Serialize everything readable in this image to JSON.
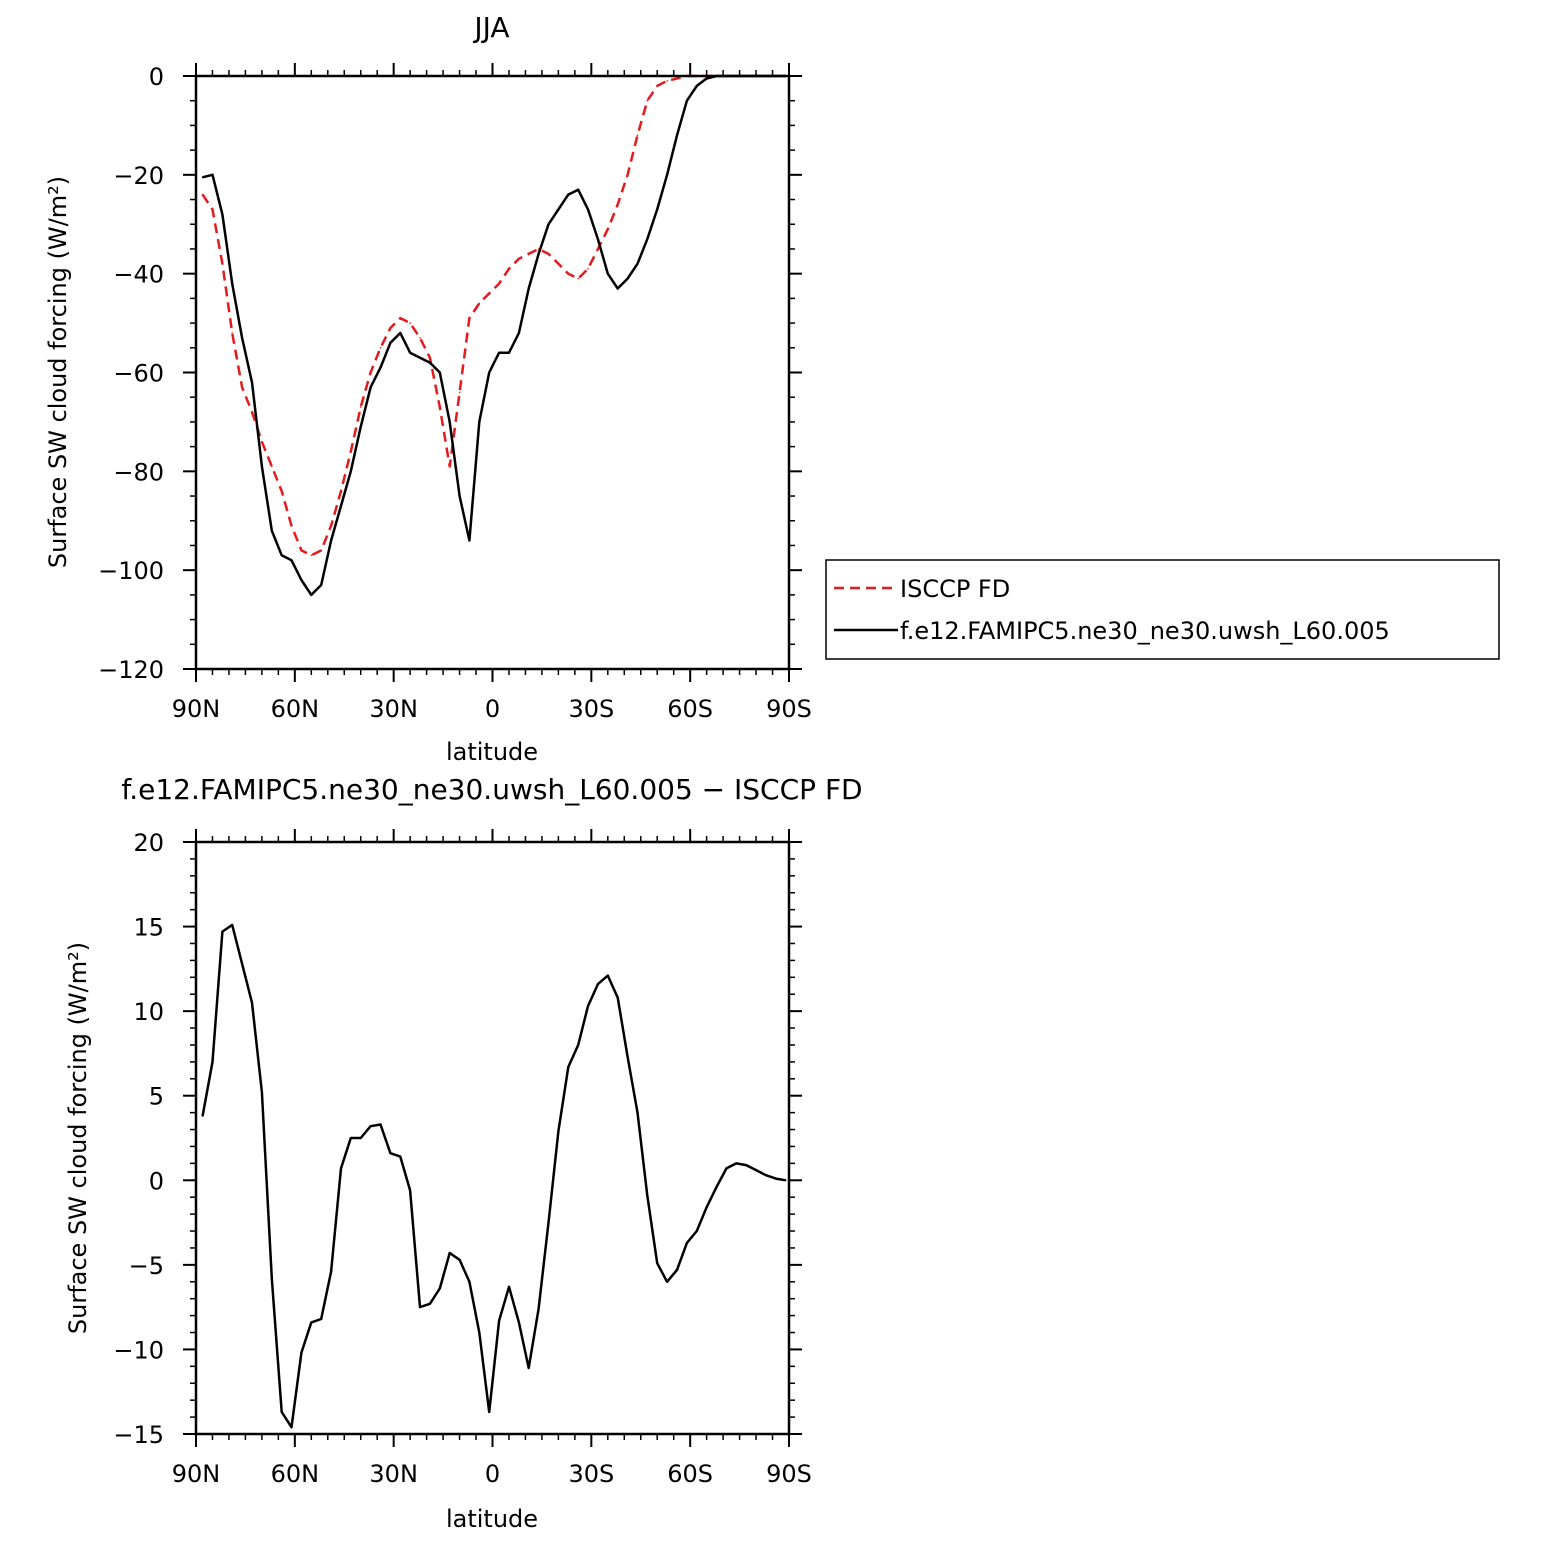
{
  "chart_data": [
    {
      "type": "line",
      "title": "JJA",
      "xlabel": "latitude",
      "ylabel": "Surface SW cloud forcing (W/m²)",
      "xlim": [
        90,
        -90
      ],
      "ylim": [
        -120,
        0
      ],
      "x_ticks": [
        {
          "value": 90,
          "label": "90N"
        },
        {
          "value": 60,
          "label": "60N"
        },
        {
          "value": 30,
          "label": "30N"
        },
        {
          "value": 0,
          "label": "0"
        },
        {
          "value": -30,
          "label": "30S"
        },
        {
          "value": -60,
          "label": "60S"
        },
        {
          "value": -90,
          "label": "90S"
        }
      ],
      "y_ticks": [
        {
          "value": 0,
          "label": "0"
        },
        {
          "value": -20,
          "label": "−20"
        },
        {
          "value": -40,
          "label": "−40"
        },
        {
          "value": -60,
          "label": "−60"
        },
        {
          "value": -80,
          "label": "−80"
        },
        {
          "value": -100,
          "label": "−100"
        },
        {
          "value": -120,
          "label": "−120"
        }
      ],
      "legend": {
        "position": "right",
        "entries": [
          {
            "label": "ISCCP FD",
            "color": "#e41a1c",
            "style": "dashed"
          },
          {
            "label": "f.e12.FAMIPC5.ne30_ne30.uwsh_L60.005",
            "color": "#000000",
            "style": "solid"
          }
        ]
      },
      "series": [
        {
          "name": "ISCCP FD",
          "color": "#e41a1c",
          "style": "dashed",
          "x": [
            88,
            85,
            82,
            79,
            76,
            73,
            70,
            67,
            64,
            61,
            58,
            55,
            52,
            49,
            46,
            43,
            40,
            37,
            34,
            31,
            28,
            25,
            22,
            19,
            16,
            13,
            10,
            7,
            4,
            1,
            -2,
            -5,
            -8,
            -11,
            -14,
            -17,
            -20,
            -23,
            -26,
            -29,
            -32,
            -35,
            -38,
            -41,
            -44,
            -47,
            -50,
            -53,
            -56,
            -59,
            -62,
            -65,
            -68,
            -71,
            -74,
            -77,
            -80,
            -83,
            -86,
            -89
          ],
          "y": [
            -24,
            -27,
            -38,
            -52,
            -63,
            -68,
            -74,
            -79,
            -84,
            -91,
            -96,
            -97,
            -96,
            -91,
            -84,
            -76,
            -67,
            -60,
            -55,
            -51,
            -49,
            -50,
            -53,
            -57,
            -67,
            -79,
            -64,
            -49,
            -46,
            -44,
            -42,
            -39,
            -37,
            -36,
            -35,
            -36,
            -38,
            -40,
            -41,
            -39,
            -35,
            -31,
            -26,
            -20,
            -12,
            -5,
            -2,
            -1,
            -0.5,
            0,
            0,
            0,
            0,
            0,
            0,
            0,
            0,
            0,
            0,
            0
          ]
        },
        {
          "name": "f.e12.FAMIPC5.ne30_ne30.uwsh_L60.005",
          "color": "#000000",
          "style": "solid",
          "x": [
            88,
            85,
            82,
            79,
            76,
            73,
            70,
            67,
            64,
            61,
            58,
            55,
            52,
            49,
            46,
            43,
            40,
            37,
            34,
            31,
            28,
            25,
            22,
            19,
            16,
            13,
            10,
            7,
            4,
            1,
            -2,
            -5,
            -8,
            -11,
            -14,
            -17,
            -20,
            -23,
            -26,
            -29,
            -32,
            -35,
            -38,
            -41,
            -44,
            -47,
            -50,
            -53,
            -56,
            -59,
            -62,
            -65,
            -68,
            -71,
            -74,
            -77,
            -80,
            -83,
            -86,
            -89
          ],
          "y": [
            -20.5,
            -20,
            -28,
            -42,
            -53,
            -62,
            -79,
            -92,
            -97,
            -98,
            -102,
            -105,
            -103,
            -94,
            -87,
            -80,
            -71,
            -63,
            -59,
            -54,
            -52,
            -56,
            -57,
            -58,
            -60,
            -70,
            -85,
            -94,
            -70,
            -60,
            -56,
            -56,
            -52,
            -43,
            -36,
            -30,
            -27,
            -24,
            -23,
            -27,
            -33,
            -40,
            -43,
            -41,
            -38,
            -33,
            -27,
            -20,
            -12,
            -5,
            -2,
            -0.5,
            0,
            0,
            0,
            0,
            0,
            0,
            0,
            0
          ]
        }
      ]
    },
    {
      "type": "line",
      "title": "f.e12.FAMIPC5.ne30_ne30.uwsh_L60.005 − ISCCP FD",
      "xlabel": "latitude",
      "ylabel": "Surface SW cloud forcing (W/m²)",
      "xlim": [
        90,
        -90
      ],
      "ylim": [
        -15,
        20
      ],
      "x_ticks": [
        {
          "value": 90,
          "label": "90N"
        },
        {
          "value": 60,
          "label": "60N"
        },
        {
          "value": 30,
          "label": "30N"
        },
        {
          "value": 0,
          "label": "0"
        },
        {
          "value": -30,
          "label": "30S"
        },
        {
          "value": -60,
          "label": "60S"
        },
        {
          "value": -90,
          "label": "90S"
        }
      ],
      "y_ticks": [
        {
          "value": 20,
          "label": "20"
        },
        {
          "value": 15,
          "label": "15"
        },
        {
          "value": 10,
          "label": "10"
        },
        {
          "value": 5,
          "label": "5"
        },
        {
          "value": 0,
          "label": "0"
        },
        {
          "value": -5,
          "label": "−5"
        },
        {
          "value": -10,
          "label": "−10"
        },
        {
          "value": -15,
          "label": "−15"
        }
      ],
      "series": [
        {
          "color": "#000000",
          "style": "solid",
          "x": [
            88,
            85,
            82,
            79,
            76,
            73,
            70,
            67,
            64,
            61,
            58,
            55,
            52,
            49,
            46,
            43,
            40,
            37,
            34,
            31,
            28,
            25,
            22,
            19,
            16,
            13,
            10,
            7,
            4,
            1,
            -2,
            -5,
            -8,
            -11,
            -14,
            -17,
            -20,
            -23,
            -26,
            -29,
            -32,
            -35,
            -38,
            -41,
            -44,
            -47,
            -50,
            -53,
            -56,
            -59,
            -62,
            -65,
            -68,
            -71,
            -74,
            -77,
            -80,
            -83,
            -86,
            -89
          ],
          "y": [
            3.8,
            7,
            14.7,
            15.1,
            12.8,
            10.5,
            5.2,
            -5.8,
            -13.7,
            -14.6,
            -10.2,
            -8.4,
            -8.2,
            -5.4,
            0.7,
            2.5,
            2.5,
            3.2,
            3.3,
            1.6,
            1.4,
            -0.6,
            -7.5,
            -7.3,
            -6.4,
            -4.3,
            -4.7,
            -6,
            -9,
            -13.7,
            -8.3,
            -6.3,
            -8.4,
            -11.1,
            -7.6,
            -2.5,
            2.9,
            6.7,
            8,
            10.3,
            11.6,
            12.1,
            10.8,
            7.3,
            4,
            -0.9,
            -4.9,
            -6,
            -5.3,
            -3.7,
            -3,
            -1.6,
            -0.4,
            0.7,
            1,
            0.9,
            0.6,
            0.3,
            0.1,
            0
          ]
        }
      ]
    }
  ]
}
